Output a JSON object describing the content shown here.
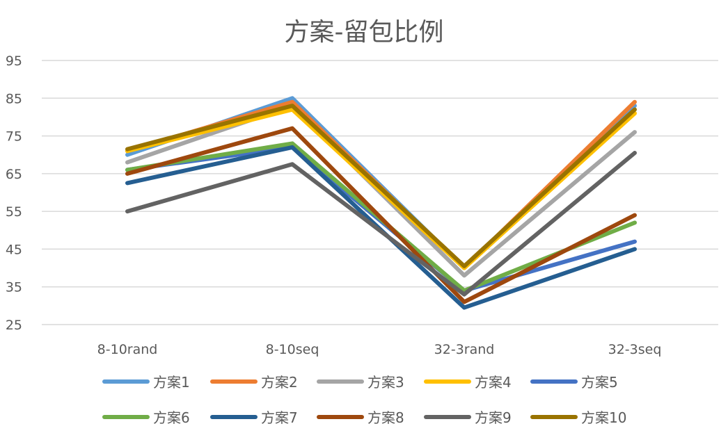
{
  "chart_data": {
    "type": "line",
    "title": "方案-留包比例",
    "categories": [
      "8-10rand",
      "8-10seq",
      "32-3rand",
      "32-3seq"
    ],
    "ylim": [
      25,
      95
    ],
    "yticks": [
      25,
      35,
      45,
      55,
      65,
      75,
      85,
      95
    ],
    "grid": true,
    "legend_position": "bottom",
    "series": [
      {
        "name": "方案1",
        "color": "#5B9BD5",
        "values": [
          70,
          85,
          40,
          83
        ]
      },
      {
        "name": "方案2",
        "color": "#ED7D31",
        "values": [
          71,
          84,
          40,
          84
        ]
      },
      {
        "name": "方案3",
        "color": "#A5A5A5",
        "values": [
          68,
          83,
          38,
          76
        ]
      },
      {
        "name": "方案4",
        "color": "#FFC000",
        "values": [
          71,
          82,
          40,
          81
        ]
      },
      {
        "name": "方案5",
        "color": "#4472C4",
        "values": [
          66,
          72,
          34,
          47
        ]
      },
      {
        "name": "方案6",
        "color": "#70AD47",
        "values": [
          66,
          73,
          34,
          52
        ]
      },
      {
        "name": "方案7",
        "color": "#255E91",
        "values": [
          62.5,
          72,
          29.5,
          45
        ]
      },
      {
        "name": "方案8",
        "color": "#9E480E",
        "values": [
          65,
          77,
          31,
          54
        ]
      },
      {
        "name": "方案9",
        "color": "#636363",
        "values": [
          55,
          67.5,
          33,
          70.5
        ]
      },
      {
        "name": "方案10",
        "color": "#997300",
        "values": [
          71.5,
          83,
          40.5,
          82
        ]
      }
    ]
  }
}
